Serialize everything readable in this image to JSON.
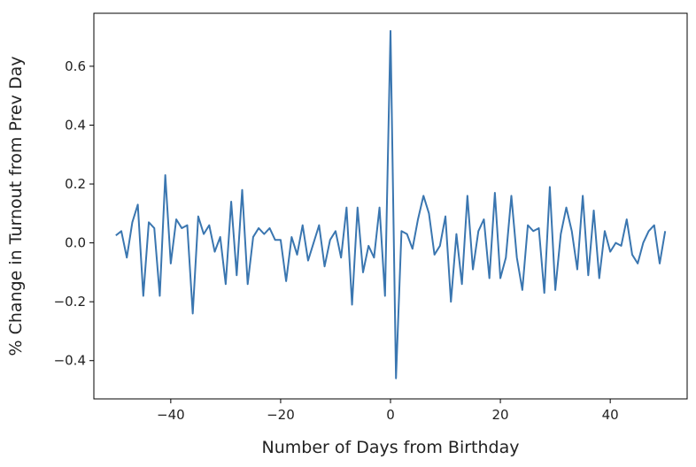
{
  "chart_data": {
    "type": "line",
    "title": "",
    "xlabel": "Number of Days from Birthday",
    "ylabel": "% Change in Turnout from Prev Day",
    "xlim": [
      -54,
      54
    ],
    "ylim": [
      -0.53,
      0.78
    ],
    "xticks": [
      -40,
      -20,
      0,
      20,
      40
    ],
    "xtick_labels": [
      "−40",
      "−20",
      "0",
      "20",
      "40"
    ],
    "yticks": [
      -0.4,
      -0.2,
      0.0,
      0.2,
      0.4,
      0.6
    ],
    "ytick_labels": [
      "−0.4",
      "−0.2",
      "0.0",
      "0.2",
      "0.4",
      "0.6"
    ],
    "grid": false,
    "line_color": "#3a76b0",
    "series": [
      {
        "x": [
          -50,
          -49,
          -48,
          -47,
          -46,
          -45,
          -44,
          -43,
          -42,
          -41,
          -40,
          -39,
          -38,
          -37,
          -36,
          -35,
          -34,
          -33,
          -32,
          -31,
          -30,
          -29,
          -28,
          -27,
          -26,
          -25,
          -24,
          -23,
          -22,
          -21,
          -20,
          -19,
          -18,
          -17,
          -16,
          -15,
          -14,
          -13,
          -12,
          -11,
          -10,
          -9,
          -8,
          -7,
          -6,
          -5,
          -4,
          -3,
          -2,
          -1,
          0,
          1,
          2,
          3,
          4,
          5,
          6,
          7,
          8,
          9,
          10,
          11,
          12,
          13,
          14,
          15,
          16,
          17,
          18,
          19,
          20,
          21,
          22,
          23,
          24,
          25,
          26,
          27,
          28,
          29,
          30,
          31,
          32,
          33,
          34,
          35,
          36,
          37,
          38,
          39,
          40,
          41,
          42,
          43,
          44,
          45,
          46,
          47,
          48,
          49,
          50
        ],
        "values": [
          0.025,
          0.04,
          -0.05,
          0.07,
          0.13,
          -0.18,
          0.07,
          0.05,
          -0.18,
          0.23,
          -0.07,
          0.08,
          0.05,
          0.06,
          -0.24,
          0.09,
          0.03,
          0.06,
          -0.03,
          0.02,
          -0.14,
          0.14,
          -0.11,
          0.18,
          -0.14,
          0.02,
          0.05,
          0.03,
          0.05,
          0.01,
          0.01,
          -0.13,
          0.02,
          -0.04,
          0.06,
          -0.06,
          0.0,
          0.06,
          -0.08,
          0.01,
          0.04,
          -0.05,
          0.12,
          -0.21,
          0.12,
          -0.1,
          -0.01,
          -0.05,
          0.12,
          -0.18,
          0.72,
          -0.46,
          0.04,
          0.03,
          -0.02,
          0.08,
          0.16,
          0.1,
          -0.04,
          -0.01,
          0.09,
          -0.2,
          0.03,
          -0.14,
          0.16,
          -0.09,
          0.04,
          0.08,
          -0.12,
          0.17,
          -0.12,
          -0.05,
          0.16,
          -0.05,
          -0.16,
          0.06,
          0.04,
          0.05,
          -0.17,
          0.19,
          -0.16,
          0.03,
          0.12,
          0.04,
          -0.09,
          0.16,
          -0.11,
          0.11,
          -0.12,
          0.04,
          -0.03,
          0.0,
          -0.01,
          0.08,
          -0.04,
          -0.07,
          0.0,
          0.04,
          0.06,
          -0.07,
          0.04
        ]
      }
    ]
  }
}
